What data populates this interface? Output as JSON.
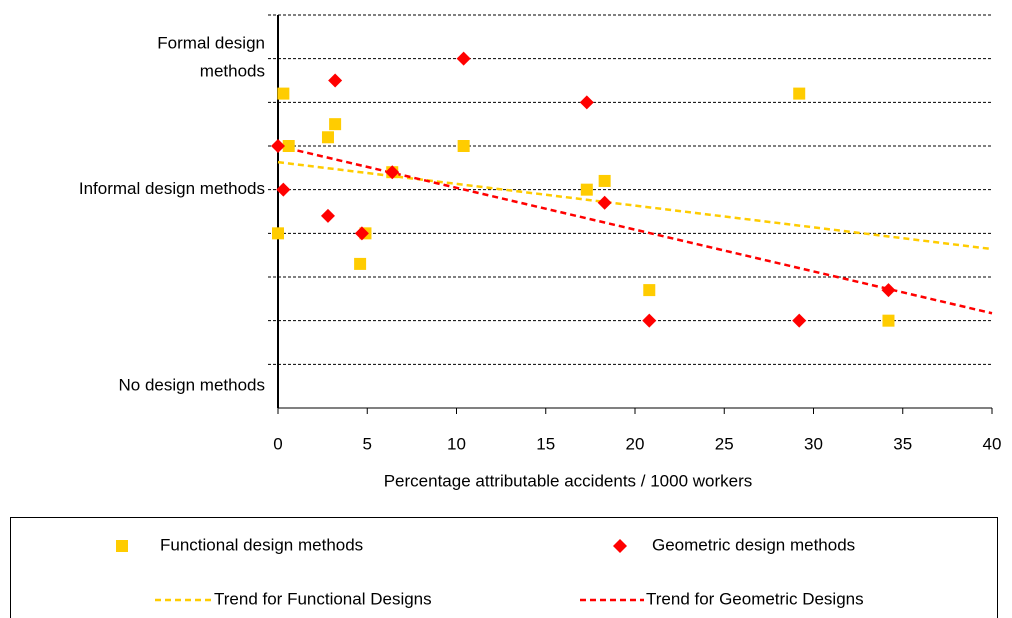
{
  "chart_data": {
    "type": "scatter",
    "x_label": "Percentage attributable accidents / 1000 workers",
    "xlim": [
      0,
      40
    ],
    "xticks": [
      0,
      5,
      10,
      15,
      20,
      25,
      30,
      35,
      40
    ],
    "ylim": [
      0,
      9
    ],
    "yticks": [
      {
        "value": 8,
        "label": "Formal design methods"
      },
      {
        "value": 5,
        "label": "Informal design methods"
      },
      {
        "value": 0.5,
        "label": "No design methods"
      }
    ],
    "ygrid": [
      1,
      2,
      3,
      4,
      5,
      6,
      7,
      8,
      9
    ],
    "series": [
      {
        "name": "Functional design methods",
        "color": "#FFCC00",
        "marker": "square",
        "x": [
          0.3,
          0.6,
          3.2,
          2.8,
          0,
          4.6,
          4.9,
          6.4,
          10.4,
          17.3,
          18.3,
          20.8,
          29.2,
          34.2
        ],
        "values": [
          7.2,
          6.0,
          6.5,
          6.2,
          4.0,
          3.3,
          4.0,
          5.4,
          6.0,
          5.0,
          5.2,
          2.7,
          7.2,
          2.0
        ]
      },
      {
        "name": "Geometric design methods",
        "color": "#FF0000",
        "marker": "diamond",
        "x": [
          0,
          0.3,
          3.2,
          2.8,
          4.7,
          6.4,
          10.4,
          17.3,
          18.3,
          20.8,
          29.2,
          34.2
        ],
        "values": [
          6.0,
          5.0,
          7.5,
          4.4,
          4.0,
          5.4,
          8.0,
          7.0,
          4.7,
          2.0,
          2.0,
          2.7
        ]
      },
      {
        "name": "Trend for Functional Designs",
        "color": "#FFCC00",
        "line": "dashed",
        "x": [
          0,
          40
        ],
        "values": [
          5.63,
          3.64
        ]
      },
      {
        "name": "Trend for Geometric Designs",
        "color": "#FF0000",
        "line": "dashed",
        "x": [
          0,
          40
        ],
        "values": [
          6.0,
          2.17
        ]
      }
    ]
  }
}
